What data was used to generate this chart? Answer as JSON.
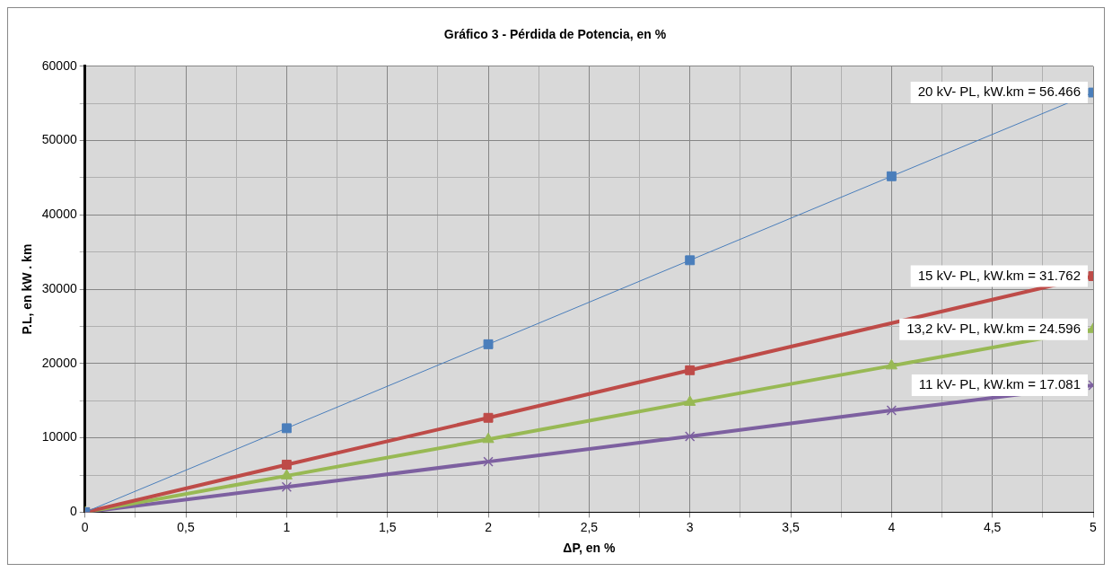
{
  "chart_data": {
    "type": "line",
    "title": "Gráfico 3 - Pérdida de Potencia, en %",
    "xlabel": "ΔP, en %",
    "ylabel": "P.L, en kW . km",
    "x": [
      0,
      1,
      2,
      3,
      4,
      5
    ],
    "series": [
      {
        "color": "#4a7ebb",
        "values": [
          0,
          11300,
          22600,
          33900,
          45200,
          56466
        ],
        "marker": "square"
      },
      {
        "color": "#be4b48",
        "values": [
          0,
          6400,
          12700,
          19100,
          null,
          31762
        ],
        "marker": "square"
      },
      {
        "color": "#98b954",
        "values": [
          0,
          4900,
          9800,
          14800,
          19700,
          24596
        ],
        "marker": "triangle"
      },
      {
        "color": "#7d60a0",
        "values": [
          0,
          3400,
          6800,
          10200,
          13700,
          17081
        ],
        "marker": "cross"
      }
    ],
    "xlim": [
      0,
      5
    ],
    "xticks": [
      {
        "value": 0,
        "label": "0"
      },
      {
        "value": 0.25,
        "label": null
      },
      {
        "value": 0.5,
        "label": "0,5"
      },
      {
        "value": 0.75,
        "label": null
      },
      {
        "value": 1,
        "label": "1"
      },
      {
        "value": 1.25,
        "label": null
      },
      {
        "value": 1.5,
        "label": "1,5"
      },
      {
        "value": 1.75,
        "label": null
      },
      {
        "value": 2,
        "label": "2"
      },
      {
        "value": 2.25,
        "label": null
      },
      {
        "value": 2.5,
        "label": "2,5"
      },
      {
        "value": 2.75,
        "label": null
      },
      {
        "value": 3,
        "label": "3"
      },
      {
        "value": 3.25,
        "label": null
      },
      {
        "value": 3.5,
        "label": "3,5"
      },
      {
        "value": 3.75,
        "label": null
      },
      {
        "value": 4,
        "label": "4"
      },
      {
        "value": 4.25,
        "label": null
      },
      {
        "value": 4.5,
        "label": "4,5"
      },
      {
        "value": 4.75,
        "label": null
      },
      {
        "value": 5,
        "label": "5"
      }
    ],
    "ylim": [
      0,
      60000
    ],
    "yticks": [
      0,
      {
        "value": 5000,
        "label": null
      },
      10000,
      {
        "value": 15000,
        "label": null
      },
      20000,
      {
        "value": 25000,
        "label": null
      },
      30000,
      {
        "value": 35000,
        "label": null
      },
      40000,
      {
        "value": 45000,
        "label": null
      },
      50000,
      {
        "value": 55000,
        "label": null
      },
      60000
    ],
    "grid": true,
    "legend": false,
    "annotations": [
      "20 kV- PL, kW.km = 56.466",
      "15 kV- PL, kW.km = 31.762",
      "13,2 kV- PL, kW.km = 24.596",
      "11 kV- PL, kW.km = 17.081"
    ]
  }
}
